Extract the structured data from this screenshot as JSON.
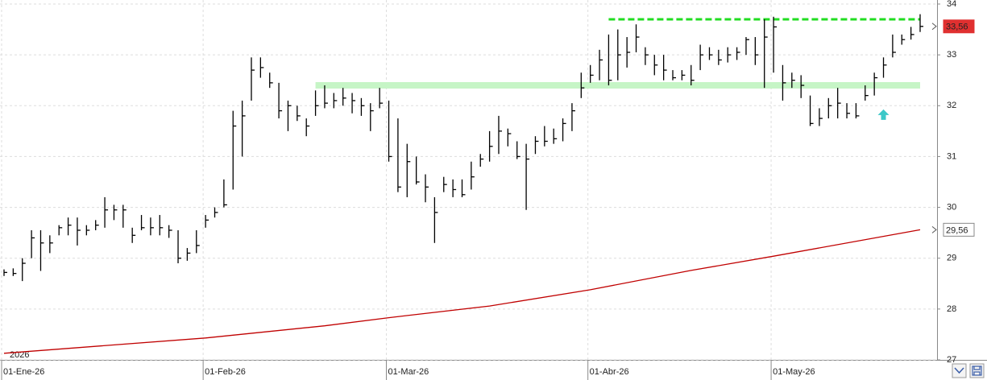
{
  "chart_data": {
    "type": "ohlc",
    "year_label": "2026",
    "categories": [
      "01-Ene-26",
      null,
      null,
      null,
      null,
      null,
      null,
      null,
      null,
      null,
      null,
      null,
      null,
      null,
      null,
      null,
      null,
      null,
      null,
      null,
      null,
      null,
      "01-Feb-26",
      null,
      null,
      null,
      null,
      null,
      null,
      null,
      null,
      null,
      null,
      null,
      null,
      null,
      null,
      null,
      null,
      null,
      null,
      null,
      "01-Mar-26",
      null,
      null,
      null,
      null,
      null,
      null,
      null,
      null,
      null,
      null,
      null,
      null,
      null,
      null,
      null,
      null,
      null,
      null,
      null,
      null,
      null,
      "01-Abr-26",
      null,
      null,
      null,
      null,
      null,
      null,
      null,
      null,
      null,
      null,
      null,
      null,
      null,
      null,
      null,
      null,
      null,
      null,
      null,
      "01-May-26",
      null,
      null,
      null,
      null,
      null,
      null,
      null,
      null,
      null,
      null,
      null,
      null,
      null,
      null,
      null,
      null
    ],
    "high": [
      28.78,
      28.8,
      29.0,
      29.55,
      29.55,
      29.45,
      29.65,
      29.8,
      29.8,
      29.65,
      29.75,
      30.2,
      30.05,
      30.05,
      29.6,
      29.85,
      29.8,
      29.85,
      29.65,
      29.55,
      29.2,
      29.55,
      29.85,
      30.0,
      30.55,
      31.9,
      32.1,
      32.95,
      32.95,
      32.65,
      32.45,
      32.1,
      32.0,
      31.75,
      32.3,
      32.4,
      32.25,
      32.35,
      32.25,
      32.15,
      32.05,
      32.35,
      32.1,
      31.75,
      31.25,
      31.0,
      30.65,
      30.2,
      30.6,
      30.55,
      30.55,
      30.9,
      31.05,
      31.5,
      31.8,
      31.55,
      31.3,
      31.25,
      31.4,
      31.6,
      31.55,
      31.75,
      32.05,
      32.65,
      32.8,
      33.1,
      33.4,
      33.5,
      33.35,
      33.6,
      33.15,
      33.0,
      33.0,
      32.7,
      32.7,
      32.8,
      33.2,
      33.15,
      33.1,
      33.15,
      33.15,
      33.35,
      33.35,
      33.7,
      33.75,
      32.8,
      32.65,
      32.6,
      32.2,
      31.95,
      32.15,
      32.35,
      32.05,
      32.05,
      32.4,
      32.65,
      32.95,
      33.4,
      33.4,
      33.55,
      33.8
    ],
    "low": [
      28.65,
      28.65,
      28.55,
      29.0,
      28.75,
      29.1,
      29.45,
      29.45,
      29.25,
      29.45,
      29.55,
      29.6,
      29.75,
      29.6,
      29.3,
      29.55,
      29.45,
      29.45,
      29.4,
      28.9,
      28.95,
      29.1,
      29.6,
      29.8,
      30.0,
      30.35,
      31.0,
      32.1,
      32.55,
      32.35,
      31.75,
      31.5,
      31.7,
      31.4,
      31.8,
      31.95,
      31.95,
      32.0,
      31.85,
      31.8,
      31.5,
      31.95,
      30.9,
      30.3,
      30.2,
      30.45,
      30.1,
      29.3,
      30.3,
      30.2,
      30.2,
      30.35,
      30.8,
      30.9,
      31.05,
      31.2,
      30.95,
      29.95,
      31.05,
      31.2,
      31.25,
      31.3,
      31.5,
      32.15,
      32.45,
      32.5,
      32.4,
      32.5,
      32.75,
      33.05,
      32.8,
      32.6,
      32.5,
      32.5,
      32.5,
      32.4,
      32.7,
      32.9,
      32.8,
      32.85,
      32.9,
      33.0,
      32.8,
      32.35,
      32.65,
      32.1,
      32.35,
      32.15,
      31.6,
      31.6,
      31.75,
      31.75,
      31.75,
      31.75,
      32.1,
      32.2,
      32.55,
      32.95,
      33.2,
      33.3,
      33.45
    ],
    "close": [
      28.72,
      28.7,
      28.9,
      29.4,
      29.3,
      29.3,
      29.6,
      29.65,
      29.55,
      29.55,
      29.65,
      29.95,
      29.95,
      29.95,
      29.45,
      29.6,
      29.6,
      29.6,
      29.55,
      29.0,
      29.1,
      29.25,
      29.75,
      29.9,
      30.05,
      31.6,
      31.8,
      32.7,
      32.75,
      32.45,
      31.9,
      32.0,
      31.8,
      31.6,
      32.0,
      32.05,
      32.1,
      32.15,
      32.1,
      32.0,
      31.9,
      32.05,
      31.0,
      30.4,
      30.9,
      30.5,
      30.4,
      29.9,
      30.45,
      30.35,
      30.25,
      30.6,
      30.95,
      31.2,
      31.5,
      31.45,
      31.0,
      30.95,
      31.3,
      31.3,
      31.35,
      31.65,
      31.9,
      32.35,
      32.6,
      32.9,
      32.5,
      33.0,
      33.05,
      33.35,
      33.0,
      32.8,
      32.7,
      32.55,
      32.6,
      32.5,
      33.0,
      33.0,
      32.9,
      33.0,
      33.05,
      33.3,
      33.0,
      33.35,
      33.55,
      32.45,
      32.5,
      32.4,
      31.65,
      31.75,
      32.0,
      32.05,
      31.85,
      31.8,
      32.2,
      32.55,
      32.8,
      33.05,
      33.3,
      33.4,
      33.56
    ],
    "color": "#000000",
    "close_label": "33,56",
    "close_label_color": "#e03030",
    "ma": {
      "x": [
        0,
        22,
        35,
        42,
        53,
        64,
        75,
        84,
        100
      ],
      "values": [
        27.13,
        27.43,
        27.67,
        27.83,
        28.06,
        28.38,
        28.76,
        29.04,
        29.56
      ],
      "color": "#c00000",
      "label": "29,56"
    },
    "levels": [
      {
        "value": 32.4,
        "from": 34,
        "to": 100,
        "color": "#c6f5c6",
        "style": "band"
      },
      {
        "value": 33.7,
        "from": 66,
        "to": 100,
        "color": "#22dd22",
        "style": "dashed"
      }
    ],
    "arrow": {
      "x": 96,
      "y": 31.8,
      "color": "#3cc8c8"
    },
    "ylim": [
      27,
      34
    ],
    "yticks": [
      27,
      28,
      29,
      30,
      31,
      32,
      33,
      34
    ],
    "grid": true
  }
}
